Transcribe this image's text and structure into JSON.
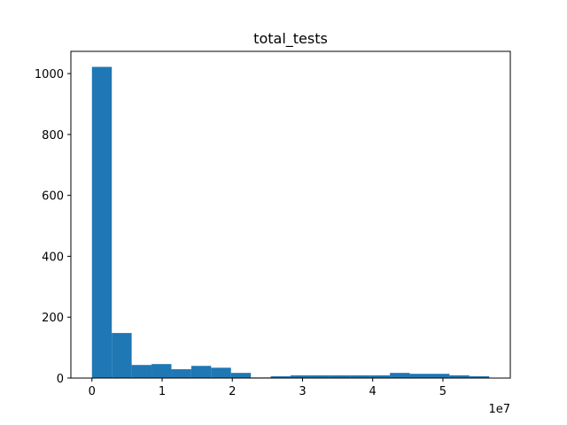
{
  "chart_data": {
    "type": "bar",
    "title": "total_tests",
    "xlabel": "",
    "ylabel": "",
    "x_offset_label": "1e7",
    "bar_color": "#1f77b4",
    "bin_edges": [
      0,
      2830000,
      5660000,
      8490000,
      11320000,
      14150000,
      16980000,
      19810000,
      22640000,
      25470000,
      28300000,
      31130000,
      33960000,
      36790000,
      39620000,
      42450000,
      45280000,
      48110000,
      50940000,
      53770000,
      56600000
    ],
    "values": [
      1022,
      148,
      43,
      46,
      29,
      40,
      34,
      17,
      2,
      6,
      9,
      9,
      9,
      9,
      9,
      17,
      14,
      14,
      9,
      6
    ],
    "xlim": [
      -3000000,
      59600000
    ],
    "ylim": [
      0,
      1073
    ],
    "x_ticks": [
      0,
      1,
      2,
      3,
      4,
      5
    ],
    "y_ticks": [
      0,
      200,
      400,
      600,
      800,
      1000
    ],
    "grid": false
  }
}
